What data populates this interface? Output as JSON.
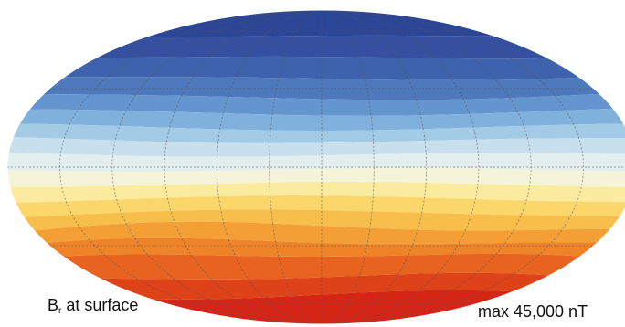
{
  "caption_left": {
    "symbol": "B",
    "subscript": "r",
    "text": " at surface"
  },
  "caption_right": "max 45,000 nT",
  "colors": {
    "bands_north_to_south": [
      "#2b4597",
      "#34509f",
      "#3f62ad",
      "#4e79bc",
      "#6595cf",
      "#80b1dd",
      "#a3cbe6",
      "#c8e0ee",
      "#e3efee",
      "#f6f4d8",
      "#fbeb9f",
      "#fbd66b",
      "#f7be4b",
      "#f39f36",
      "#ee8328",
      "#e8631f",
      "#de4219",
      "#d52517"
    ],
    "grid": "#555555",
    "outline": "#ffffff"
  }
}
